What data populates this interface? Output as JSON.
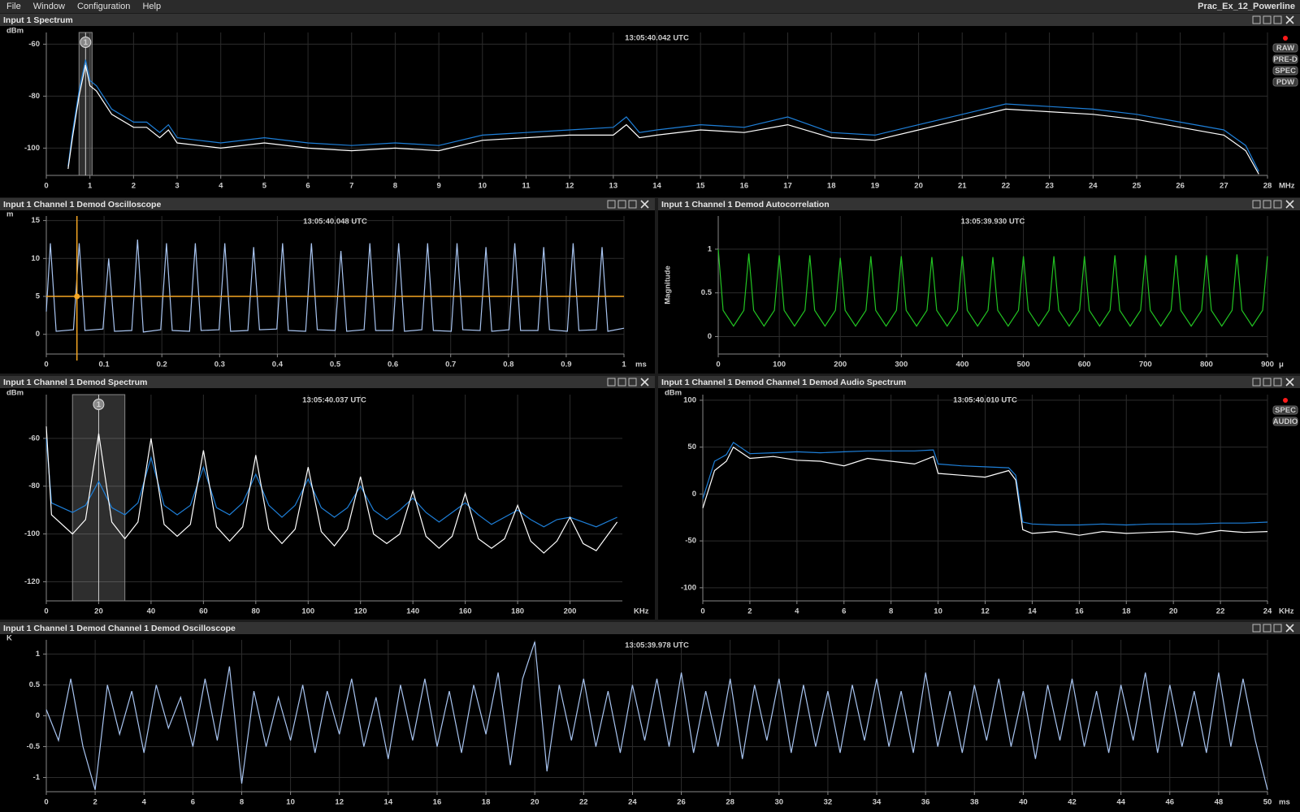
{
  "menu": [
    "File",
    "Window",
    "Configuration",
    "Help"
  ],
  "window_title": "Prac_Ex_12_Powerline",
  "chart_data": [
    {
      "type": "line",
      "title": "Input 1 Spectrum",
      "timestamp": "13:05:40.042 UTC",
      "ylabel": "dBm",
      "xlabel": "MHz",
      "xlim": [
        0,
        28
      ],
      "ylim": [
        -110.5,
        -55.5
      ],
      "xticks": [
        0,
        1,
        2,
        3,
        4,
        5,
        6,
        7,
        8,
        9,
        10,
        11,
        12,
        13,
        14,
        15,
        16,
        17,
        18,
        19,
        20,
        21,
        22,
        23,
        24,
        25,
        26,
        27,
        28
      ],
      "yticks": [
        -60,
        -80,
        -100
      ],
      "grid": true,
      "x": [
        0.5,
        0.6,
        0.75,
        0.9,
        1.0,
        1.15,
        1.5,
        2,
        2.3,
        2.6,
        2.8,
        3,
        3.5,
        4,
        5,
        6,
        7,
        8,
        9,
        10,
        11,
        12,
        13,
        13.3,
        13.6,
        14,
        15,
        16,
        17,
        18,
        19,
        20,
        21,
        22,
        23,
        24,
        25,
        26,
        27,
        27.5,
        27.8
      ],
      "series": [
        {
          "color": "#1e7fd8",
          "values": [
            -107,
            -94,
            -78,
            -66,
            -74,
            -76,
            -85,
            -90,
            -90,
            -94,
            -91,
            -96,
            -97,
            -98,
            -96,
            -98,
            -99,
            -98,
            -99,
            -95,
            -94,
            -93,
            -92,
            -88,
            -94,
            -93,
            -91,
            -92,
            -88,
            -94,
            -95,
            -91,
            -87,
            -83,
            -84,
            -85,
            -87,
            -90,
            -93,
            -99,
            -109
          ]
        },
        {
          "color": "#ffffff",
          "values": [
            -108,
            -96,
            -80,
            -68,
            -76,
            -78,
            -87,
            -92,
            -92,
            -96,
            -93,
            -98,
            -99,
            -100,
            -98,
            -100,
            -101,
            -100,
            -101,
            -97,
            -96,
            -95,
            -95,
            -91,
            -96,
            -95,
            -93,
            -94,
            -91,
            -96,
            -97,
            -93,
            -89,
            -85,
            -86,
            -87,
            -89,
            -92,
            -95,
            -101,
            -110
          ]
        }
      ],
      "marker": {
        "label": "1",
        "x": 0.9,
        "band": [
          0.75,
          1.05
        ]
      },
      "buttons": [
        "RAW",
        "PRE-D",
        "SPEC",
        "PDW"
      ]
    },
    {
      "type": "line",
      "title": "Input 1 Channel 1 Demod Oscilloscope",
      "timestamp": "13:05:40.048 UTC",
      "ylabel": "m",
      "xlabel": "ms",
      "xlim": [
        0,
        1
      ],
      "ylim": [
        -2.6,
        15.6
      ],
      "xticks": [
        0,
        0.1,
        0.2,
        0.3,
        0.4,
        0.5,
        0.6,
        0.7,
        0.8,
        0.9,
        1
      ],
      "yticks": [
        0,
        5,
        10,
        15
      ],
      "grid": true,
      "x": [
        0,
        0.007,
        0.017,
        0.047,
        0.057,
        0.067,
        0.098,
        0.108,
        0.118,
        0.148,
        0.158,
        0.168,
        0.198,
        0.208,
        0.218,
        0.248,
        0.258,
        0.268,
        0.299,
        0.309,
        0.319,
        0.349,
        0.359,
        0.369,
        0.399,
        0.409,
        0.419,
        0.449,
        0.459,
        0.469,
        0.5,
        0.51,
        0.52,
        0.55,
        0.56,
        0.57,
        0.6,
        0.61,
        0.62,
        0.65,
        0.66,
        0.67,
        0.701,
        0.711,
        0.721,
        0.751,
        0.761,
        0.771,
        0.801,
        0.811,
        0.821,
        0.851,
        0.861,
        0.871,
        0.902,
        0.912,
        0.922,
        0.952,
        0.962,
        0.972,
        1
      ],
      "series": [
        {
          "color": "#a8c4f0",
          "values": [
            3,
            12,
            0.4,
            0.6,
            12,
            0.5,
            0.7,
            10,
            0.4,
            0.5,
            12.5,
            0.3,
            0.6,
            12,
            0.5,
            0.4,
            12,
            0.5,
            0.6,
            12,
            0.4,
            0.5,
            11.5,
            0.6,
            0.7,
            12,
            0.5,
            0.4,
            12,
            0.6,
            0.5,
            11,
            0.4,
            0.6,
            12,
            0.5,
            0.5,
            12,
            0.4,
            0.6,
            12,
            0.5,
            0.4,
            12,
            0.6,
            0.5,
            11.5,
            0.4,
            0.6,
            12,
            0.5,
            0.5,
            11.5,
            0.6,
            0.4,
            12,
            0.5,
            0.6,
            11.5,
            0.4,
            0.8
          ]
        }
      ],
      "cursor": {
        "x": 0.053,
        "y": 5,
        "color": "#f5a623"
      }
    },
    {
      "type": "line",
      "title": "Input 1 Channel 1 Demod Autocorrelation",
      "timestamp": "13:05:39.930 UTC",
      "ylabel": "Magnitude",
      "xlabel": "μ",
      "xlim": [
        0,
        900
      ],
      "ylim": [
        -0.2,
        1.38
      ],
      "xticks": [
        0,
        100,
        200,
        300,
        400,
        500,
        600,
        700,
        800,
        900
      ],
      "yticks": [
        0,
        0.5,
        1
      ],
      "grid": true,
      "x": [
        0,
        8,
        25,
        42,
        50,
        58,
        75,
        92,
        100,
        108,
        125,
        142,
        150,
        158,
        175,
        192,
        200,
        208,
        225,
        242,
        250,
        258,
        275,
        292,
        300,
        308,
        325,
        342,
        350,
        358,
        375,
        392,
        400,
        408,
        425,
        442,
        450,
        458,
        475,
        492,
        500,
        508,
        525,
        542,
        550,
        558,
        575,
        592,
        600,
        608,
        625,
        642,
        650,
        658,
        675,
        692,
        700,
        708,
        725,
        742,
        750,
        758,
        775,
        792,
        800,
        808,
        825,
        842,
        850,
        858,
        875,
        892,
        900
      ],
      "series": [
        {
          "color": "#22c322",
          "values": [
            1,
            0.3,
            0.12,
            0.3,
            0.95,
            0.3,
            0.12,
            0.3,
            0.93,
            0.3,
            0.12,
            0.3,
            0.93,
            0.3,
            0.12,
            0.3,
            0.9,
            0.3,
            0.12,
            0.3,
            0.92,
            0.3,
            0.12,
            0.3,
            0.92,
            0.3,
            0.12,
            0.3,
            0.91,
            0.3,
            0.12,
            0.3,
            0.92,
            0.3,
            0.12,
            0.3,
            0.91,
            0.3,
            0.12,
            0.3,
            0.92,
            0.3,
            0.12,
            0.3,
            0.92,
            0.3,
            0.12,
            0.3,
            0.92,
            0.3,
            0.12,
            0.3,
            0.93,
            0.3,
            0.12,
            0.3,
            0.93,
            0.3,
            0.12,
            0.3,
            0.93,
            0.3,
            0.12,
            0.3,
            0.93,
            0.3,
            0.12,
            0.3,
            0.94,
            0.3,
            0.12,
            0.3,
            0.92
          ]
        }
      ]
    },
    {
      "type": "line",
      "title": "Input 1 Channel 1 Demod Spectrum",
      "timestamp": "13:05:40.037 UTC",
      "ylabel": "dBm",
      "xlabel": "KHz",
      "xlim": [
        0,
        220
      ],
      "ylim": [
        -128,
        -41.7
      ],
      "xticks": [
        0,
        20,
        40,
        60,
        80,
        100,
        120,
        140,
        160,
        180,
        200
      ],
      "yticks": [
        -60,
        -80,
        -100,
        -120
      ],
      "grid": true,
      "x": [
        0,
        2,
        10,
        15,
        20,
        25,
        30,
        35,
        40,
        45,
        50,
        55,
        60,
        65,
        70,
        75,
        80,
        85,
        90,
        95,
        100,
        105,
        110,
        115,
        120,
        125,
        130,
        135,
        140,
        145,
        150,
        155,
        160,
        165,
        170,
        175,
        180,
        185,
        190,
        195,
        200,
        205,
        210,
        218
      ],
      "series": [
        {
          "color": "#1e7fd8",
          "values": [
            -60,
            -87,
            -91,
            -88,
            -78,
            -89,
            -92,
            -87,
            -68,
            -88,
            -92,
            -88,
            -72,
            -89,
            -92,
            -87,
            -75,
            -88,
            -93,
            -88,
            -77,
            -89,
            -93,
            -89,
            -80,
            -90,
            -94,
            -90,
            -85,
            -91,
            -95,
            -91,
            -87,
            -92,
            -96,
            -93,
            -90,
            -94,
            -97,
            -94,
            -93,
            -95,
            -97,
            -93
          ]
        },
        {
          "color": "#ffffff",
          "values": [
            -55,
            -92,
            -100,
            -94,
            -58,
            -95,
            -102,
            -95,
            -60,
            -96,
            -101,
            -96,
            -65,
            -97,
            -103,
            -97,
            -67,
            -98,
            -104,
            -98,
            -72,
            -99,
            -105,
            -98,
            -76,
            -100,
            -104,
            -100,
            -82,
            -101,
            -106,
            -101,
            -83,
            -102,
            -106,
            -102,
            -88,
            -103,
            -108,
            -103,
            -93,
            -104,
            -107,
            -95
          ]
        }
      ],
      "marker": {
        "label": "1",
        "x": 20,
        "band": [
          10,
          30
        ]
      }
    },
    {
      "type": "line",
      "title": "Input 1 Channel 1 Demod Channel 1 Demod Audio Spectrum",
      "timestamp": "13:05:40.010 UTC",
      "ylabel": "dBm",
      "xlabel": "KHz",
      "xlim": [
        0,
        24
      ],
      "ylim": [
        -114,
        106
      ],
      "xticks": [
        0,
        2,
        4,
        6,
        8,
        10,
        12,
        14,
        16,
        18,
        20,
        22,
        24
      ],
      "yticks": [
        100,
        50,
        0,
        -50,
        -100
      ],
      "grid": true,
      "x": [
        0,
        0.5,
        1,
        1.3,
        2,
        3,
        4,
        5,
        6,
        7,
        8,
        9,
        9.8,
        10,
        11,
        12,
        13,
        13.3,
        13.6,
        14,
        15,
        16,
        17,
        18,
        19,
        20,
        21,
        22,
        23,
        24
      ],
      "series": [
        {
          "color": "#1e7fd8",
          "values": [
            -5,
            35,
            42,
            55,
            43,
            44,
            45,
            44,
            45,
            46,
            46,
            46,
            47,
            32,
            30,
            29,
            28,
            20,
            -30,
            -32,
            -33,
            -33,
            -32,
            -33,
            -32,
            -32,
            -32,
            -31,
            -31,
            -30
          ]
        },
        {
          "color": "#ffffff",
          "values": [
            -15,
            25,
            35,
            50,
            38,
            40,
            36,
            35,
            30,
            38,
            35,
            32,
            40,
            22,
            20,
            18,
            25,
            15,
            -38,
            -42,
            -40,
            -44,
            -40,
            -42,
            -41,
            -40,
            -43,
            -39,
            -41,
            -40
          ]
        }
      ],
      "buttons": [
        "SPEC",
        "AUDIO"
      ]
    },
    {
      "type": "line",
      "title": "Input 1 Channel 1 Demod Channel 1 Demod Oscilloscope",
      "timestamp": "13:05:39.978 UTC",
      "ylabel": "K",
      "xlabel": "ms",
      "xlim": [
        0,
        50
      ],
      "ylim": [
        -1.23,
        1.23
      ],
      "xticks": [
        0,
        2,
        4,
        6,
        8,
        10,
        12,
        14,
        16,
        18,
        20,
        22,
        24,
        26,
        28,
        30,
        32,
        34,
        36,
        38,
        40,
        42,
        44,
        46,
        48,
        50
      ],
      "yticks": [
        1,
        0.5,
        0,
        -0.5,
        -1
      ],
      "grid": true,
      "x": [
        0,
        0.5,
        1,
        1.5,
        2,
        2.5,
        3,
        3.5,
        4,
        4.5,
        5,
        5.5,
        6,
        6.5,
        7,
        7.5,
        8,
        8.5,
        9,
        9.5,
        10,
        10.5,
        11,
        11.5,
        12,
        12.5,
        13,
        13.5,
        14,
        14.5,
        15,
        15.5,
        16,
        16.5,
        17,
        17.5,
        18,
        18.5,
        19,
        19.5,
        20,
        20.5,
        21,
        21.5,
        22,
        22.5,
        23,
        23.5,
        24,
        24.5,
        25,
        25.5,
        26,
        26.5,
        27,
        27.5,
        28,
        28.5,
        29,
        29.5,
        30,
        30.5,
        31,
        31.5,
        32,
        32.5,
        33,
        33.5,
        34,
        34.5,
        35,
        35.5,
        36,
        36.5,
        37,
        37.5,
        38,
        38.5,
        39,
        39.5,
        40,
        40.5,
        41,
        41.5,
        42,
        42.5,
        43,
        43.5,
        44,
        44.5,
        45,
        45.5,
        46,
        46.5,
        47,
        47.5,
        48,
        48.5,
        49,
        49.5,
        50
      ],
      "series": [
        {
          "color": "#a8c4f0",
          "values": [
            0.1,
            -0.4,
            0.6,
            -0.5,
            -1.2,
            0.5,
            -0.3,
            0.4,
            -0.6,
            0.5,
            -0.2,
            0.3,
            -0.5,
            0.6,
            -0.4,
            0.8,
            -1.1,
            0.4,
            -0.5,
            0.3,
            -0.4,
            0.5,
            -0.6,
            0.4,
            -0.3,
            0.6,
            -0.5,
            0.3,
            -0.7,
            0.5,
            -0.4,
            0.6,
            -0.5,
            0.4,
            -0.6,
            0.5,
            -0.3,
            0.7,
            -0.8,
            0.6,
            1.2,
            -0.9,
            0.5,
            -0.4,
            0.6,
            -0.5,
            0.4,
            -0.6,
            0.5,
            -0.4,
            0.6,
            -0.5,
            0.7,
            -0.6,
            0.4,
            -0.5,
            0.6,
            -0.7,
            0.5,
            -0.4,
            0.6,
            -0.6,
            0.5,
            -0.5,
            0.4,
            -0.6,
            0.5,
            -0.4,
            0.6,
            -0.5,
            0.4,
            -0.6,
            0.7,
            -0.5,
            0.4,
            -0.6,
            0.5,
            -0.4,
            0.6,
            -0.5,
            0.4,
            -0.7,
            0.5,
            -0.4,
            0.6,
            -0.5,
            0.4,
            -0.6,
            0.5,
            -0.4,
            0.7,
            -0.6,
            0.5,
            -0.5,
            0.4,
            -0.6,
            0.7,
            -0.5,
            0.6,
            -0.4,
            -1.2
          ]
        }
      ]
    }
  ]
}
